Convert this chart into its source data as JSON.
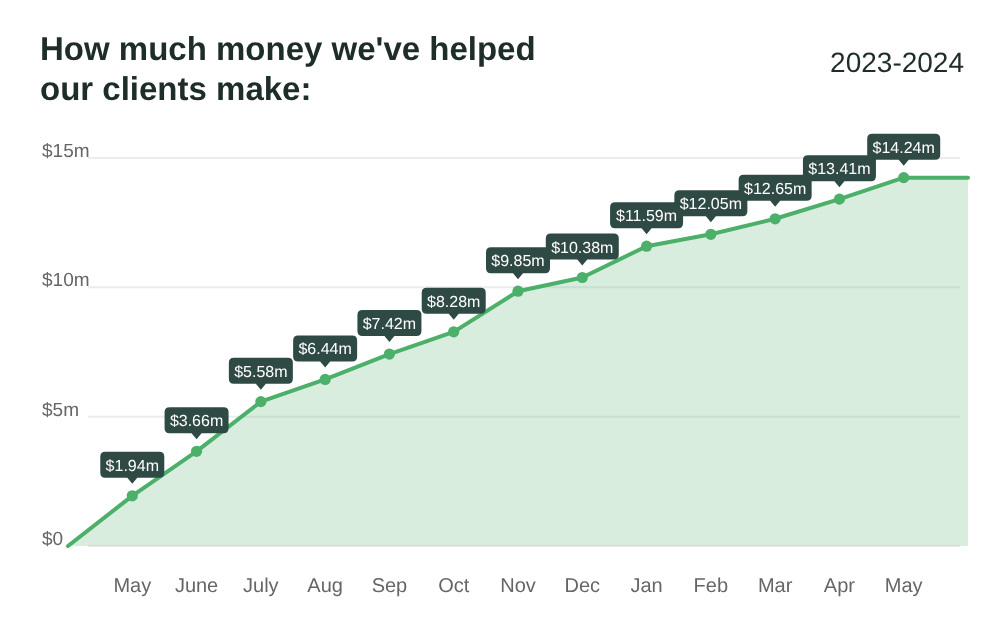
{
  "chart_data": {
    "type": "area",
    "title": "How much money we've helped our clients make:",
    "subtitle": "2023-2024",
    "categories": [
      null,
      "May",
      "June",
      "July",
      "Aug",
      "Sep",
      "Oct",
      "Nov",
      "Dec",
      "Jan",
      "Feb",
      "Mar",
      "Apr",
      "May",
      null
    ],
    "ylim": [
      0,
      15
    ],
    "yticks": [
      {
        "value": 0,
        "label": "$0"
      },
      {
        "value": 5,
        "label": "$5m"
      },
      {
        "value": 10,
        "label": "$10m"
      },
      {
        "value": 15,
        "label": "$15m"
      }
    ],
    "grid": "y",
    "marker": "circle",
    "series": [
      {
        "color": "#4caf6a",
        "values": [
          0,
          1.94,
          3.66,
          5.58,
          6.44,
          7.42,
          8.28,
          9.85,
          10.38,
          11.59,
          12.05,
          12.65,
          13.41,
          14.24,
          14.24
        ],
        "value_labels": [
          null,
          "$1.94m",
          "$3.66m",
          "$5.58m",
          "$6.44m",
          "$7.42m",
          "$8.28m",
          "$9.85m",
          "$10.38m",
          "$11.59m",
          "$12.05m",
          "$12.65m",
          "$13.41m",
          "$14.24m",
          null
        ]
      }
    ]
  }
}
